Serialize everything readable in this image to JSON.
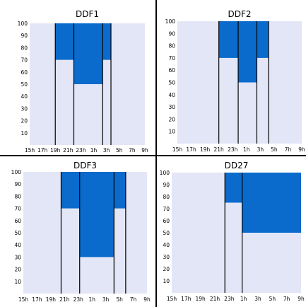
{
  "colors": {
    "background": "#ffffff",
    "plot_area": "#e3e6f6",
    "fill": "#0a6bcc",
    "line": "#000000"
  },
  "chart_data": [
    {
      "type": "area",
      "title": "DDF1",
      "x_ticks": [
        "15h",
        "17h",
        "19h",
        "21h",
        "23h",
        "1h",
        "3h",
        "5h",
        "7h",
        "9h"
      ],
      "x_range_hours": [
        15,
        33
      ],
      "ylim": [
        0,
        100
      ],
      "y_ticks": [
        10,
        20,
        30,
        40,
        50,
        60,
        70,
        80,
        90,
        100
      ],
      "verticals_hours": [
        19,
        21.9,
        26.4,
        27.7
      ],
      "segments": [
        {
          "start_hour": 19,
          "end_hour": 21.9,
          "value": 70
        },
        {
          "start_hour": 21.9,
          "end_hour": 26.4,
          "value": 50
        },
        {
          "start_hour": 26.4,
          "end_hour": 27.7,
          "value": 70
        }
      ]
    },
    {
      "type": "area",
      "title": "DDF2",
      "x_ticks": [
        "15h",
        "17h",
        "19h",
        "21h",
        "23h",
        "1h",
        "3h",
        "5h",
        "7h",
        "9h"
      ],
      "x_range_hours": [
        15,
        33
      ],
      "ylim": [
        0,
        100
      ],
      "y_ticks": [
        10,
        20,
        30,
        40,
        50,
        60,
        70,
        80,
        90,
        100
      ],
      "verticals_hours": [
        21,
        23.8,
        26.5,
        28.2
      ],
      "segments": [
        {
          "start_hour": 21,
          "end_hour": 23.8,
          "value": 70
        },
        {
          "start_hour": 23.8,
          "end_hour": 26.5,
          "value": 50
        },
        {
          "start_hour": 26.5,
          "end_hour": 28.2,
          "value": 70
        }
      ]
    },
    {
      "type": "area",
      "title": "DDF3",
      "x_ticks": [
        "15h",
        "17h",
        "19h",
        "21h",
        "23h",
        "1h",
        "3h",
        "5h",
        "7h",
        "9h"
      ],
      "x_range_hours": [
        15,
        33
      ],
      "ylim": [
        0,
        100
      ],
      "y_ticks": [
        10,
        20,
        30,
        40,
        50,
        60,
        70,
        80,
        90,
        100
      ],
      "verticals_hours": [
        20.5,
        23.2,
        28.2,
        29.9
      ],
      "segments": [
        {
          "start_hour": 20.5,
          "end_hour": 23.2,
          "value": 70
        },
        {
          "start_hour": 23.2,
          "end_hour": 28.2,
          "value": 30
        },
        {
          "start_hour": 28.2,
          "end_hour": 29.9,
          "value": 70
        }
      ]
    },
    {
      "type": "area",
      "title": "DD27",
      "x_ticks": [
        "15h",
        "17h",
        "19h",
        "21h",
        "23h",
        "1h",
        "3h",
        "5h",
        "7h",
        "9h"
      ],
      "x_range_hours": [
        15,
        33
      ],
      "ylim": [
        0,
        100
      ],
      "y_ticks": [
        10,
        20,
        30,
        40,
        50,
        60,
        70,
        80,
        90,
        100
      ],
      "verticals_hours": [
        22.4,
        24.8
      ],
      "segments": [
        {
          "start_hour": 22.4,
          "end_hour": 24.8,
          "value": 75
        },
        {
          "start_hour": 24.8,
          "end_hour": 33,
          "value": 50
        }
      ]
    }
  ]
}
